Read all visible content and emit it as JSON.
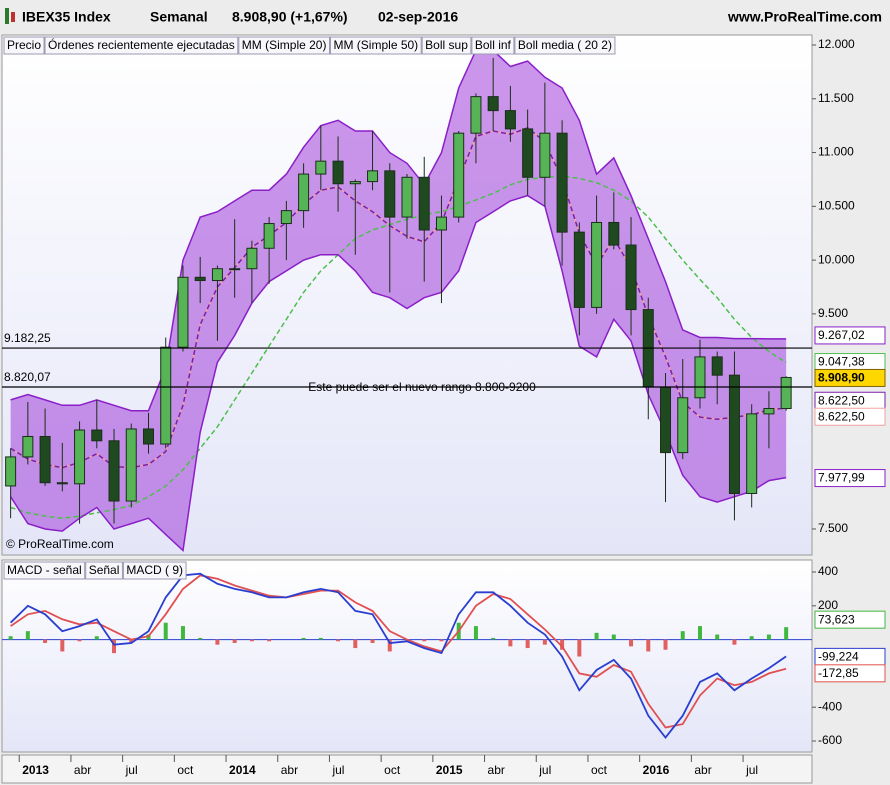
{
  "header": {
    "symbol": "IBEX35 Index",
    "period": "Semanal",
    "quote": "8.908,90 (+1,67%)",
    "date": "02-sep-2016",
    "site": "www.ProRealTime.com"
  },
  "chart_data": [
    {
      "type": "candlestick",
      "price_legend": "Precio",
      "watermark": "© ProRealTime.com",
      "annotation": "Este puede ser el nuevo rango 8.800-9200",
      "x": [
        "2012-12",
        "2013-01",
        "2013-02",
        "2013-03",
        "2013-04",
        "2013-05",
        "2013-06",
        "2013-07",
        "2013-08",
        "2013-09",
        "2013-10",
        "2013-11",
        "2013-12",
        "2014-01",
        "2014-02",
        "2014-03",
        "2014-04",
        "2014-05",
        "2014-06",
        "2014-07",
        "2014-08",
        "2014-09",
        "2014-10",
        "2014-11",
        "2014-12",
        "2015-01",
        "2015-02",
        "2015-03",
        "2015-04",
        "2015-05",
        "2015-06",
        "2015-07",
        "2015-08",
        "2015-09",
        "2015-10",
        "2015-11",
        "2015-12",
        "2016-01",
        "2016-02",
        "2016-03",
        "2016-04",
        "2016-05",
        "2016-06",
        "2016-07",
        "2016-08",
        "2016-09"
      ],
      "xlim": [
        "2012-12",
        "2016-11"
      ],
      "open": [
        7900,
        8170,
        8360,
        7930,
        7920,
        8420,
        8320,
        7760,
        8430,
        8290,
        9190,
        9840,
        9810,
        9920,
        9920,
        10110,
        10340,
        10460,
        10800,
        10920,
        10710,
        10730,
        10830,
        10400,
        10770,
        10280,
        10400,
        11180,
        11520,
        11390,
        11220,
        10770,
        11180,
        10260,
        9560,
        10350,
        10140,
        9540,
        8820,
        8210,
        8720,
        9100,
        8930,
        7830,
        8570,
        8620
      ],
      "high": [
        8250,
        8680,
        8620,
        8300,
        8500,
        8700,
        8430,
        8480,
        8580,
        9280,
        9950,
        10030,
        9950,
        10380,
        10180,
        10400,
        10550,
        10900,
        11250,
        11150,
        10750,
        11200,
        10900,
        10800,
        10960,
        10600,
        11200,
        11550,
        11880,
        11620,
        11400,
        11650,
        11300,
        10350,
        10600,
        10630,
        10400,
        9650,
        8950,
        9080,
        9260,
        9150,
        9150,
        8660,
        8780,
        8920
      ],
      "low": [
        7600,
        8100,
        7900,
        7850,
        7550,
        8250,
        7550,
        7700,
        8200,
        8250,
        9150,
        9600,
        9250,
        9650,
        9600,
        9780,
        10000,
        10300,
        10650,
        10450,
        10050,
        10650,
        9700,
        10200,
        9800,
        9600,
        10350,
        10900,
        11200,
        11100,
        10600,
        10500,
        9950,
        9300,
        9500,
        10100,
        9300,
        8520,
        7750,
        8150,
        8620,
        8660,
        7580,
        7700,
        8250,
        8600
      ],
      "close": [
        8170,
        8360,
        7930,
        7920,
        8420,
        8320,
        7760,
        8430,
        8290,
        9190,
        9840,
        9810,
        9920,
        9920,
        10110,
        10340,
        10460,
        10800,
        10920,
        10710,
        10730,
        10830,
        10400,
        10770,
        10280,
        10400,
        11180,
        11520,
        11390,
        11220,
        10770,
        11180,
        10260,
        9560,
        10350,
        10140,
        9540,
        8820,
        8210,
        8720,
        9100,
        8930,
        7830,
        8570,
        8620,
        8908.9
      ],
      "up_color": "#56b356",
      "down_color": "#1f4a1f",
      "wick_color": "#1a2e1a",
      "last_value": 8908.9,
      "last_label": "8.908,90",
      "last_bg": "#ffd700",
      "band_color": "#a040d8",
      "hlines": [
        {
          "value": 9182.25,
          "label": "9.182,25"
        },
        {
          "value": 8820.07,
          "label": "8.820,07"
        }
      ],
      "series": [
        {
          "name": "Órdenes recientemente ejecutadas",
          "color": "#e06666"
        },
        {
          "name": "MM (Simple 20)",
          "color": "#f2a0a0",
          "line_style": "solid",
          "values": [
            8250,
            8150,
            8100,
            8070,
            8120,
            8200,
            8080,
            8070,
            8100,
            8220,
            8650,
            9400,
            9750,
            9930,
            10120,
            10230,
            10350,
            10520,
            10650,
            10680,
            10550,
            10450,
            10320,
            10220,
            10170,
            10350,
            10750,
            11150,
            11200,
            11170,
            11230,
            11100,
            10750,
            10250,
            9950,
            10200,
            9930,
            9480,
            9100,
            8680,
            8540,
            8520,
            8540,
            8560,
            8610,
            8622.5
          ],
          "last_label": "8.622,50"
        },
        {
          "name": "MM (Simple 50)",
          "color": "#4cbf4c",
          "line_style": "dashed",
          "values": [
            7700,
            7650,
            7620,
            7600,
            7620,
            7650,
            7680,
            7720,
            7800,
            7900,
            8050,
            8250,
            8450,
            8700,
            8950,
            9200,
            9450,
            9700,
            9900,
            10050,
            10200,
            10280,
            10330,
            10380,
            10420,
            10450,
            10500,
            10560,
            10620,
            10700,
            10750,
            10770,
            10780,
            10760,
            10720,
            10650,
            10550,
            10400,
            10200,
            10000,
            9820,
            9650,
            9450,
            9280,
            9150,
            9047.38
          ],
          "last_label": "9.047,38"
        },
        {
          "name": "Boll sup",
          "color": "#8a1fc8",
          "line_style": "solid",
          "values": [
            8700,
            8750,
            8700,
            8650,
            8650,
            8700,
            8650,
            8600,
            8600,
            9000,
            10000,
            10400,
            10450,
            10550,
            10650,
            10650,
            10800,
            11050,
            11250,
            11300,
            11200,
            11200,
            11000,
            10900,
            10700,
            11000,
            11600,
            11950,
            11950,
            11800,
            11850,
            11700,
            11600,
            11300,
            10800,
            10950,
            10600,
            10200,
            9800,
            9350,
            9280,
            9280,
            9270,
            9270,
            9267,
            9267.02
          ],
          "last_label": "9.267,02"
        },
        {
          "name": "Boll inf",
          "color": "#8a1fc8",
          "line_style": "solid",
          "values": [
            7800,
            7550,
            7500,
            7480,
            7600,
            7700,
            7500,
            7550,
            7600,
            7450,
            7300,
            8400,
            9050,
            9300,
            9600,
            9800,
            9900,
            10000,
            10050,
            10050,
            9900,
            9700,
            9650,
            9550,
            9650,
            9700,
            9900,
            10350,
            10450,
            10550,
            10600,
            10500,
            9900,
            9200,
            9100,
            9450,
            9250,
            8750,
            8400,
            8000,
            7800,
            7750,
            7800,
            7850,
            7950,
            7977.99
          ],
          "last_label": "7.977,99"
        },
        {
          "name": "Boll media ( 20 2)",
          "color": "#7a1fa8",
          "line_style": "dashed",
          "values": [
            8250,
            8150,
            8100,
            8070,
            8120,
            8200,
            8080,
            8070,
            8100,
            8220,
            8650,
            9400,
            9750,
            9930,
            10120,
            10230,
            10350,
            10520,
            10650,
            10680,
            10550,
            10450,
            10320,
            10220,
            10170,
            10350,
            10750,
            11150,
            11200,
            11170,
            11230,
            11100,
            10750,
            10250,
            9950,
            10200,
            9930,
            9480,
            9100,
            8680,
            8540,
            8520,
            8540,
            8560,
            8610,
            8622.5
          ],
          "last_label": "8.622,50"
        }
      ],
      "ylim": [
        7258,
        12093
      ],
      "yticks": [
        {
          "value": 12000,
          "label": "12.000"
        },
        {
          "value": 11500,
          "label": "11.500"
        },
        {
          "value": 11000,
          "label": "11.000"
        },
        {
          "value": 10500,
          "label": "10.500"
        },
        {
          "value": 10000,
          "label": "10.000"
        },
        {
          "value": 9500,
          "label": "9.500"
        },
        {
          "value": 7500,
          "label": "7.500"
        }
      ]
    },
    {
      "type": "line",
      "x": [
        "2012-12",
        "2013-01",
        "2013-02",
        "2013-03",
        "2013-04",
        "2013-05",
        "2013-06",
        "2013-07",
        "2013-08",
        "2013-09",
        "2013-10",
        "2013-11",
        "2013-12",
        "2014-01",
        "2014-02",
        "2014-03",
        "2014-04",
        "2014-05",
        "2014-06",
        "2014-07",
        "2014-08",
        "2014-09",
        "2014-10",
        "2014-11",
        "2014-12",
        "2015-01",
        "2015-02",
        "2015-03",
        "2015-04",
        "2015-05",
        "2015-06",
        "2015-07",
        "2015-08",
        "2015-09",
        "2015-10",
        "2015-11",
        "2015-12",
        "2016-01",
        "2016-02",
        "2016-03",
        "2016-04",
        "2016-05",
        "2016-06",
        "2016-07",
        "2016-08",
        "2016-09"
      ],
      "xlim": [
        "2012-12",
        "2016-11"
      ],
      "series": [
        {
          "name": "MACD - señal",
          "color": "#3fb83f",
          "negative_color": "#e06060",
          "style": "bar",
          "values": [
            20,
            50,
            -20,
            -70,
            -10,
            20,
            -80,
            -20,
            30,
            100,
            80,
            10,
            -30,
            -20,
            -10,
            -10,
            0,
            10,
            10,
            -10,
            -50,
            -20,
            -70,
            -10,
            -10,
            -10,
            100,
            80,
            10,
            -40,
            -50,
            -30,
            -60,
            -100,
            40,
            30,
            -40,
            -70,
            -60,
            50,
            80,
            30,
            -30,
            20,
            30,
            73.623
          ],
          "last_label": "73,623"
        },
        {
          "name": "Señal",
          "color": "#e05050",
          "style": "line",
          "values": [
            80,
            150,
            170,
            120,
            90,
            100,
            50,
            0,
            20,
            150,
            300,
            380,
            360,
            320,
            290,
            260,
            250,
            270,
            290,
            290,
            220,
            170,
            50,
            0,
            -40,
            -70,
            50,
            200,
            270,
            240,
            150,
            60,
            -40,
            -200,
            -220,
            -150,
            -190,
            -380,
            -520,
            -500,
            -330,
            -230,
            -270,
            -250,
            -200,
            -172.85
          ],
          "last_label": "-172,85"
        },
        {
          "name": "MACD ( 9)",
          "color": "#2a3fd0",
          "style": "line",
          "values": [
            100,
            200,
            150,
            50,
            80,
            120,
            -30,
            -20,
            50,
            250,
            380,
            390,
            330,
            300,
            280,
            250,
            250,
            280,
            300,
            280,
            170,
            150,
            -20,
            -10,
            -50,
            -80,
            150,
            280,
            280,
            200,
            100,
            30,
            -100,
            -300,
            -180,
            -120,
            -230,
            -450,
            -580,
            -450,
            -250,
            -200,
            -300,
            -230,
            -170,
            -99.224
          ],
          "last_label": "-99,224"
        }
      ],
      "ylim": [
        -665,
        471
      ],
      "yticks": [
        400,
        200,
        -400,
        -600
      ],
      "xticks": [
        {
          "value": "2013-01",
          "label": "2013"
        },
        {
          "value": "2013-04",
          "label": "abr"
        },
        {
          "value": "2013-07",
          "label": "jul"
        },
        {
          "value": "2013-10",
          "label": "oct"
        },
        {
          "value": "2014-01",
          "label": "2014"
        },
        {
          "value": "2014-04",
          "label": "abr"
        },
        {
          "value": "2014-07",
          "label": "jul"
        },
        {
          "value": "2014-10",
          "label": "oct"
        },
        {
          "value": "2015-01",
          "label": "2015"
        },
        {
          "value": "2015-04",
          "label": "abr"
        },
        {
          "value": "2015-07",
          "label": "jul"
        },
        {
          "value": "2015-10",
          "label": "oct"
        },
        {
          "value": "2016-01",
          "label": "2016"
        },
        {
          "value": "2016-04",
          "label": "abr"
        },
        {
          "value": "2016-07",
          "label": "jul"
        }
      ]
    }
  ]
}
